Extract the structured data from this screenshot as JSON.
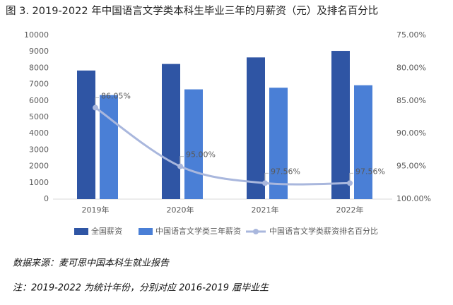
{
  "chart_data": {
    "type": "bar",
    "title": "图 3. 2019-2022 年中国语言文学类本科生毕业三年的月薪资（元）及排名百分比",
    "categories": [
      "2019年",
      "2020年",
      "2021年",
      "2022年"
    ],
    "series": [
      {
        "name": "全国薪资",
        "color": "#2f55a4",
        "values": [
          7850,
          8250,
          8650,
          9050
        ]
      },
      {
        "name": "中国语言文学类三年薪资",
        "color": "#4a7fd6",
        "values": [
          6350,
          6700,
          6800,
          6950
        ]
      },
      {
        "name": "中国语言文学类薪资排名百分比",
        "type": "line",
        "axis": "y2",
        "color": "#a9b7dd",
        "values": [
          86.05,
          95.0,
          97.56,
          97.56
        ],
        "value_labels": [
          "86.05%",
          "95.00%",
          "97.56%",
          "97.56%"
        ]
      }
    ],
    "ylim": [
      0,
      10000
    ],
    "yticks": [
      0,
      1000,
      2000,
      3000,
      4000,
      5000,
      6000,
      7000,
      8000,
      9000,
      10000
    ],
    "y2lim": [
      100,
      75
    ],
    "y2ticks": [
      {
        "value": 75,
        "label": "75.00%"
      },
      {
        "value": 80,
        "label": "80.00%"
      },
      {
        "value": 85,
        "label": "85.00%"
      },
      {
        "value": 90,
        "label": "90.00%"
      },
      {
        "value": 95,
        "label": "95.00%"
      },
      {
        "value": 100,
        "label": "100.00%"
      }
    ],
    "notes": [
      "数据来源：麦可思中国本科生就业报告",
      "注：2019-2022 为统计年份，分别对应 2016-2019 届毕业生"
    ]
  }
}
